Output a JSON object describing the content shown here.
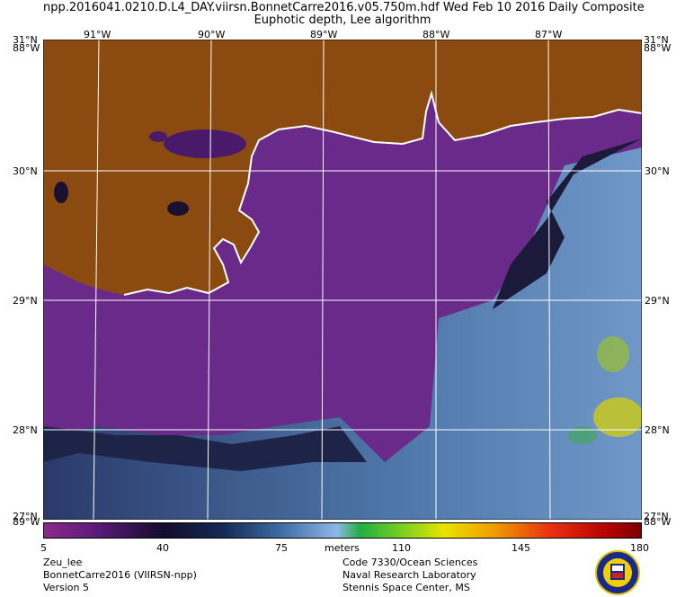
{
  "header": {
    "line1": "npp.2016041.0210.D.L4_DAY.viirsn.BonnetCarre2016.v05.750m.hdf   Wed Feb 10 2016 Daily Composite",
    "line2": "Euphotic depth, Lee algorithm"
  },
  "map": {
    "top_lon_labels": [
      "91°W",
      "90°W",
      "89°W",
      "88°W",
      "87°W"
    ],
    "lat_labels": [
      "30°N",
      "29°N",
      "28°N"
    ],
    "corner_top_left": [
      "31°N",
      "88°W"
    ],
    "corner_top_right": [
      "31°N",
      "88°W"
    ],
    "corner_bottom_left": [
      "27°N",
      "89°W"
    ],
    "corner_bottom_right": [
      "27°N",
      "88°W"
    ],
    "colors": {
      "land": "#8b4a10",
      "nearshore_water": "#6a2a8a",
      "offshore_water": "#5a86b8",
      "grid": "#ffffff",
      "coastline": "#ffffff"
    }
  },
  "colorbar": {
    "tick_labels": [
      "5",
      "40",
      "75",
      "110",
      "145",
      "180"
    ],
    "unit": "meters",
    "range": [
      5,
      180
    ]
  },
  "footer": {
    "left": [
      "Zeu_lee",
      "BonnetCarre2016 (VIIRSN-npp)",
      "Version 5"
    ],
    "right": [
      "Code 7330/Ocean Sciences",
      "Naval Research Laboratory",
      "Stennis Space Center, MS"
    ],
    "logo_icon": "nrl-seal-icon"
  }
}
